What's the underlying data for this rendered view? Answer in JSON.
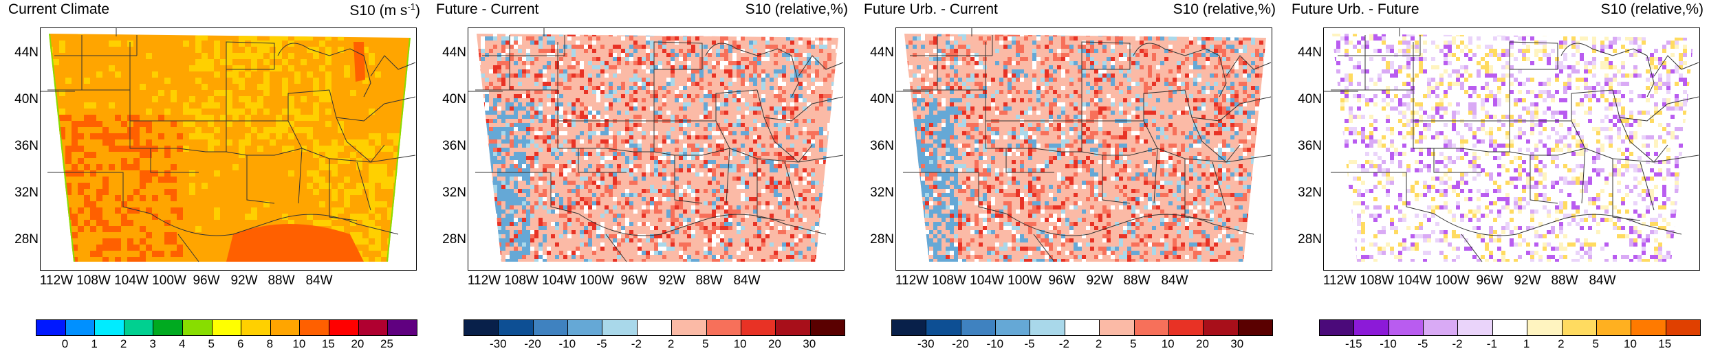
{
  "panels": [
    {
      "id": "current",
      "title": "Current Climate",
      "variable": "S10 (m s",
      "variable_sup": "-1",
      "variable_end": ")",
      "palette": [
        "#0018ff",
        "#0090ff",
        "#00ecff",
        "#00d090",
        "#00aa20",
        "#88dd00",
        "#ffff00",
        "#ffd000",
        "#ffa500",
        "#ff6000",
        "#ff0000",
        "#b00030",
        "#600080"
      ],
      "levels": [
        "0",
        "1",
        "2",
        "3",
        "4",
        "5",
        "6",
        "8",
        "10",
        "15",
        "20",
        "25"
      ],
      "dominant_color": "#ffa500",
      "field_colors": [
        "#ffa500",
        "#ffa500",
        "#ffa500",
        "#ffd000",
        "#ffd000",
        "#ff6000"
      ]
    },
    {
      "id": "fut_cur",
      "title": "Future - Current",
      "variable": "S10 (relative,%)",
      "variable_sup": "",
      "variable_end": "",
      "palette": [
        "#08204a",
        "#0d4f94",
        "#3f82c0",
        "#65a8d6",
        "#a9d8ea",
        "#ffffff",
        "#fbbaa6",
        "#f7705a",
        "#e83225",
        "#a80f1a",
        "#5a0000"
      ],
      "levels": [
        "-30",
        "-20",
        "-10",
        "-5",
        "-2",
        "2",
        "5",
        "10",
        "20",
        "30"
      ],
      "dominant_color": "#fbbaa6",
      "field_colors": [
        "#fbbaa6",
        "#f7705a",
        "#e83225",
        "#ffffff",
        "#a9d8ea",
        "#65a8d6",
        "#fbbaa6",
        "#f7705a"
      ]
    },
    {
      "id": "futurb_cur",
      "title": "Future Urb. - Current",
      "variable": "S10 (relative,%)",
      "variable_sup": "",
      "variable_end": "",
      "palette": [
        "#08204a",
        "#0d4f94",
        "#3f82c0",
        "#65a8d6",
        "#a9d8ea",
        "#ffffff",
        "#fbbaa6",
        "#f7705a",
        "#e83225",
        "#a80f1a",
        "#5a0000"
      ],
      "levels": [
        "-30",
        "-20",
        "-10",
        "-5",
        "-2",
        "2",
        "5",
        "10",
        "20",
        "30"
      ],
      "dominant_color": "#fbbaa6",
      "field_colors": [
        "#fbbaa6",
        "#f7705a",
        "#e83225",
        "#ffffff",
        "#a9d8ea",
        "#65a8d6",
        "#fbbaa6",
        "#f7705a"
      ]
    },
    {
      "id": "futurb_fut",
      "title": "Future Urb. - Future",
      "variable": "S10 (relative,%)",
      "variable_sup": "",
      "variable_end": "",
      "palette": [
        "#4b0a7a",
        "#8c1ad8",
        "#b95cf0",
        "#d9aaf5",
        "#ead4fa",
        "#ffffff",
        "#fff4c0",
        "#ffdb60",
        "#ffb020",
        "#ff7a00",
        "#e04000"
      ],
      "levels": [
        "-15",
        "-10",
        "-5",
        "-2",
        "-1",
        "1",
        "2",
        "5",
        "10",
        "15"
      ],
      "dominant_color": "#ffffff",
      "field_colors": [
        "#ffffff",
        "#ffffff",
        "#ffffff",
        "#ead4fa",
        "#d9aaf5",
        "#fff4c0",
        "#ffdb60",
        "#b95cf0"
      ]
    }
  ],
  "lat_ticks": [
    "44N",
    "40N",
    "36N",
    "32N",
    "28N"
  ],
  "lon_ticks": [
    "112W",
    "108W",
    "104W",
    "100W",
    "96W",
    "92W",
    "88W",
    "84W"
  ]
}
